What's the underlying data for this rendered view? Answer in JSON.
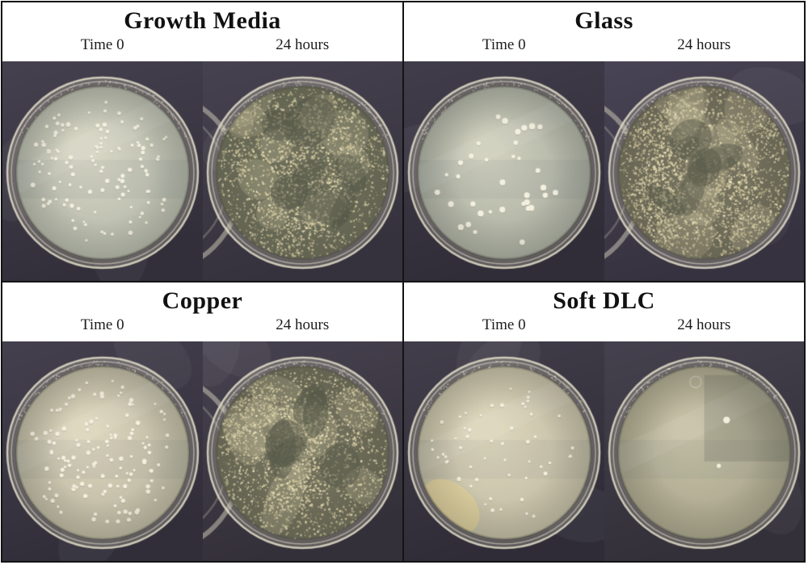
{
  "figure": {
    "description": "2x2 grid of petri dish photo pairs comparing bacterial growth on four surfaces at Time 0 and 24 hours",
    "panels": [
      {
        "id": "growth-media",
        "title": "Growth Media",
        "images": [
          {
            "label": "Time 0",
            "type": "sparse",
            "colony_count": 118,
            "dot_r": 2.1,
            "seed": 11,
            "agar_inner": "#d7d6c4",
            "agar_outer": "#b2b6a8",
            "bg_top": "#46414f",
            "bg_bottom": "#322f3a"
          },
          {
            "label": "24 hours",
            "type": "dense",
            "speckles": 2400,
            "holes": 7,
            "seed": 22,
            "neighbor_left": true,
            "dense_base": "#6d6e5a",
            "agar_inner": "#7a7a64",
            "agar_outer": "#696a57",
            "bg_top": "#474250",
            "bg_bottom": "#35323d"
          }
        ]
      },
      {
        "id": "glass",
        "title": "Glass",
        "images": [
          {
            "label": "Time 0",
            "type": "sparse",
            "colony_count": 36,
            "dot_r": 2.9,
            "seed": 33,
            "clusters": [
              [
                -0.55,
                -0.15
              ],
              [
                -0.5,
                0.45
              ],
              [
                0.32,
                0.45
              ],
              [
                0.05,
                -0.5
              ]
            ],
            "agar_inner": "#cfcfbc",
            "agar_outer": "#a9ada0",
            "bg_top": "#413d4b",
            "bg_bottom": "#302d38"
          },
          {
            "label": "24 hours",
            "type": "dense",
            "speckles": 2900,
            "holes": 5,
            "seed": 44,
            "neighbor_left": true,
            "dense_base": "#73705d",
            "agar_inner": "#7e7b66",
            "agar_outer": "#6e6c59",
            "bg_top": "#494455",
            "bg_bottom": "#36323f"
          }
        ]
      },
      {
        "id": "copper",
        "title": "Copper",
        "images": [
          {
            "label": "Time 0",
            "type": "sparse",
            "colony_count": 132,
            "dot_r": 2.1,
            "seed": 55,
            "agar_inner": "#dcd5bd",
            "agar_outer": "#bab6a0",
            "bg_top": "#45404e",
            "bg_bottom": "#312e3a"
          },
          {
            "label": "24 hours",
            "type": "dense",
            "speckles": 2700,
            "holes": 6,
            "seed": 66,
            "neighbor_left": true,
            "dense_base": "#6f6e5a",
            "agar_inner": "#7b7963",
            "agar_outer": "#6a6956",
            "bg_top": "#474250",
            "bg_bottom": "#343039"
          }
        ]
      },
      {
        "id": "soft-dlc",
        "title": "Soft DLC",
        "images": [
          {
            "label": "Time 0",
            "type": "sparse",
            "colony_count": 54,
            "dot_r": 1.9,
            "seed": 77,
            "yellow_patch": true,
            "agar_inner": "#ddd6bc",
            "agar_outer": "#bfbaa2",
            "bg_top": "#423e4b",
            "bg_bottom": "#2f2c37"
          },
          {
            "label": "24 hours",
            "type": "minimal",
            "colony_count": 2,
            "seed": 88,
            "spots": [
              [
                0.26,
                -0.38,
                4.2
              ],
              [
                0.17,
                0.15,
                2.6
              ]
            ],
            "agar_inner": "#c6c1a6",
            "agar_outer": "#a8a48b",
            "bg_top": "#45414e",
            "bg_bottom": "#333039"
          }
        ]
      }
    ],
    "colors": {
      "figure_border": "#141414",
      "bench_background": "#3c3845",
      "agar_time0": "#cfcfbc",
      "agar_24h_base": "#6f6e5a",
      "speckle_light": "#ece3bd",
      "speckle_mid": "#dbd1a6",
      "speckle_dark": "#c8bd94",
      "colony": "#f4f0e0",
      "dish_rim": "#ded9c0"
    }
  }
}
